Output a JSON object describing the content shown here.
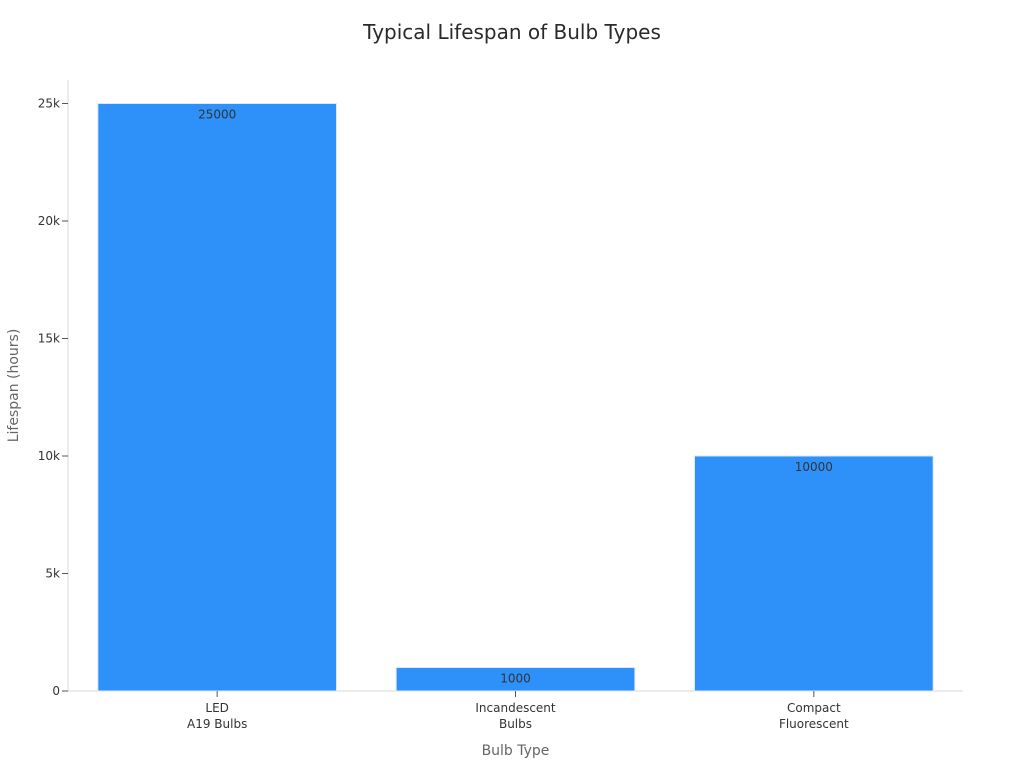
{
  "chart_data": {
    "type": "bar",
    "title": "Typical Lifespan of Bulb Types",
    "xlabel": "Bulb Type",
    "ylabel": "Lifespan (hours)",
    "categories": [
      [
        "LED",
        "A19 Bulbs"
      ],
      [
        "Incandescent",
        "Bulbs"
      ],
      [
        "Compact",
        "Fluorescent"
      ]
    ],
    "values": [
      25000,
      1000,
      10000
    ],
    "data_labels": [
      "25000",
      "1000",
      "10000"
    ],
    "ylim": [
      0,
      26000
    ],
    "yticks": [
      0,
      5000,
      10000,
      15000,
      20000,
      25000
    ],
    "ytick_labels": [
      "0",
      "5k",
      "10k",
      "15k",
      "20k",
      "25k"
    ],
    "grid": false,
    "legend": "none",
    "colors": {
      "bar": "#2E91FA",
      "bar_edge": "#dbe8f7",
      "axis": "#d9d9d9",
      "tick_text": "#333333",
      "axis_title": "#666666"
    }
  }
}
